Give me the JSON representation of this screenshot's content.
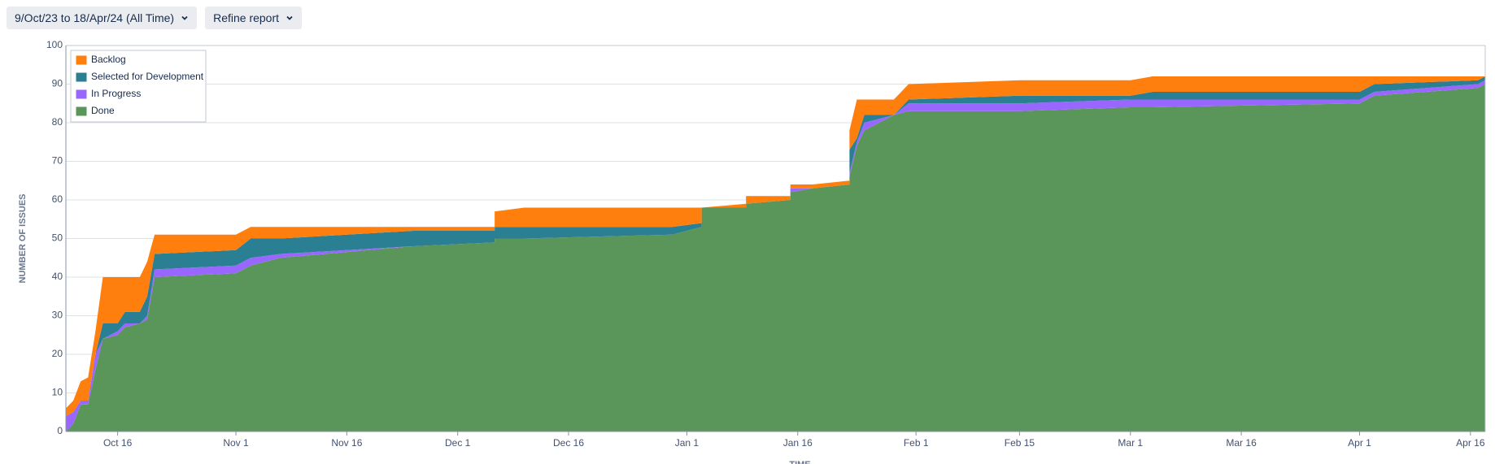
{
  "toolbar": {
    "date_range": "9/Oct/23 to 18/Apr/24 (All Time)",
    "refine": "Refine report"
  },
  "chart_data": {
    "type": "area",
    "stacked": true,
    "y_label": "NUMBER OF ISSUES",
    "x_label": "TIME",
    "x": [
      "Oct 9",
      "Oct 10",
      "Oct 11",
      "Oct 12",
      "Oct 13",
      "Oct 14",
      "Oct 16",
      "Oct 17",
      "Oct 19",
      "Oct 20",
      "Oct 21",
      "Nov 1",
      "Nov 3",
      "Nov 7",
      "Nov 25",
      "Dec 6",
      "Dec 6",
      "Dec 10",
      "Dec 30",
      "Jan 3",
      "Jan 3",
      "Jan 9",
      "Jan 9",
      "Jan 15",
      "Jan 15",
      "Jan 18",
      "Jan 23",
      "Jan 23",
      "Jan 24",
      "Jan 25",
      "Jan 29",
      "Jan 31",
      "Feb 15",
      "Mar 1",
      "Mar 4",
      "Apr 1",
      "Apr 3",
      "Apr 17",
      "Apr 18"
    ],
    "series": [
      {
        "name": "Backlog",
        "color": "#ff7f0e",
        "values": [
          2,
          3,
          5,
          6,
          6,
          12,
          12,
          9,
          9,
          9,
          5,
          4,
          3,
          3,
          1,
          1,
          4,
          5,
          5,
          4,
          0,
          1,
          2,
          1,
          1,
          1,
          1,
          5,
          10,
          4,
          4,
          4,
          4,
          4,
          4,
          4,
          2,
          1,
          0
        ]
      },
      {
        "name": "Selected for Development",
        "color": "#2a7f93",
        "values": [
          0,
          0,
          0,
          0,
          0,
          4,
          2,
          3,
          3,
          5,
          4,
          4,
          5,
          4,
          4,
          3,
          3,
          3,
          2,
          1,
          0,
          0,
          0,
          0,
          0,
          0,
          0,
          6,
          1,
          2,
          0,
          1,
          2,
          1,
          2,
          2,
          2,
          1,
          1
        ]
      },
      {
        "name": "In Progress",
        "color": "#9966ff",
        "values": [
          4,
          3,
          1,
          1,
          4,
          0,
          1,
          1,
          0,
          1,
          2,
          2,
          2,
          1,
          0,
          0,
          0,
          0,
          0,
          0,
          0,
          0,
          0,
          0,
          1,
          0,
          0,
          1,
          1,
          2,
          0,
          2,
          2,
          2,
          2,
          1,
          1,
          1,
          1
        ]
      },
      {
        "name": "Done",
        "color": "#5a955a",
        "values": [
          0,
          2,
          7,
          7,
          16,
          24,
          25,
          27,
          28,
          29,
          40,
          41,
          43,
          45,
          48,
          49,
          50,
          50,
          51,
          53,
          58,
          58,
          59,
          60,
          62,
          63,
          64,
          66,
          74,
          78,
          82,
          83,
          83,
          84,
          84,
          85,
          87,
          89,
          90
        ]
      }
    ],
    "xlim": [
      "Oct 9",
      "Apr 18"
    ],
    "xticks": [
      "Oct 16",
      "Nov 1",
      "Nov 16",
      "Dec 1",
      "Dec 16",
      "Jan 1",
      "Jan 16",
      "Feb 1",
      "Feb 15",
      "Mar 1",
      "Mar 16",
      "Apr 1",
      "Apr 16"
    ],
    "ylim": [
      0,
      100
    ],
    "yticks": [
      0,
      10,
      20,
      30,
      40,
      50,
      60,
      70,
      80,
      90,
      100
    ],
    "grid": true,
    "legend": "upper left"
  }
}
